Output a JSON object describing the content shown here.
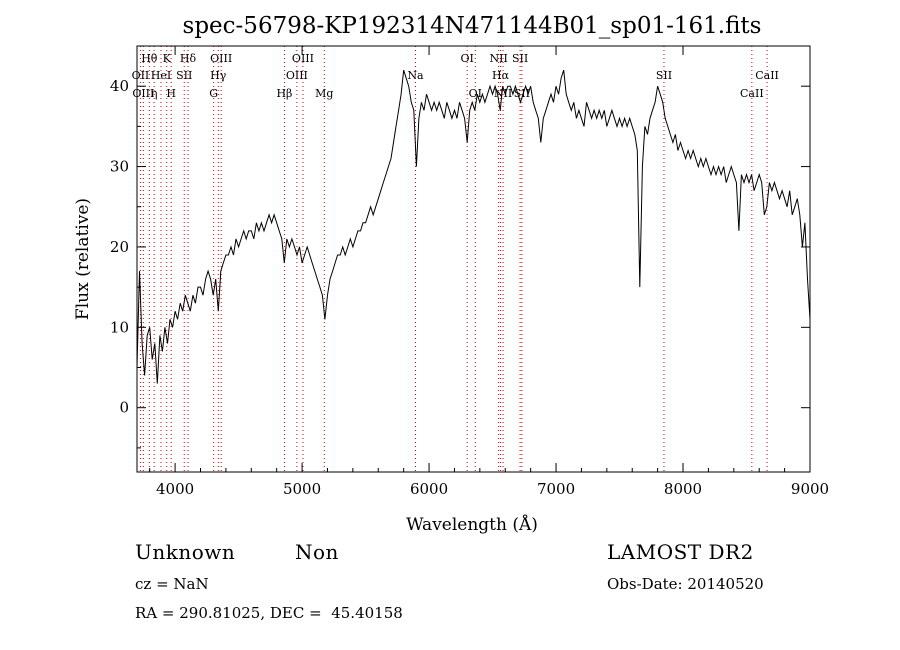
{
  "chart_data": {
    "type": "line",
    "title": "spec-56798-KP192314N471144B01_sp01-161.fits",
    "xlabel": "Wavelength (Å)",
    "ylabel": "Flux (relative)",
    "xlim": [
      3700,
      9000
    ],
    "ylim": [
      -8,
      45
    ],
    "xticks": [
      4000,
      5000,
      6000,
      7000,
      8000,
      9000
    ],
    "xtick_labels": [
      "4000",
      "5000",
      "6000",
      "7000",
      "8000",
      "9000"
    ],
    "yticks": [
      0,
      10,
      20,
      30,
      40
    ],
    "ytick_labels": [
      "0",
      "10",
      "20",
      "30",
      "40"
    ],
    "grid": false,
    "series": [
      {
        "points": [
          [
            3700,
            5
          ],
          [
            3720,
            17
          ],
          [
            3740,
            8
          ],
          [
            3760,
            4
          ],
          [
            3780,
            9
          ],
          [
            3800,
            10
          ],
          [
            3820,
            6
          ],
          [
            3840,
            8
          ],
          [
            3860,
            3
          ],
          [
            3880,
            9
          ],
          [
            3900,
            7
          ],
          [
            3920,
            10
          ],
          [
            3940,
            8
          ],
          [
            3960,
            11
          ],
          [
            3980,
            10
          ],
          [
            4000,
            12
          ],
          [
            4020,
            11
          ],
          [
            4040,
            13
          ],
          [
            4060,
            12
          ],
          [
            4080,
            14
          ],
          [
            4100,
            13
          ],
          [
            4120,
            12
          ],
          [
            4140,
            14
          ],
          [
            4160,
            13
          ],
          [
            4180,
            15
          ],
          [
            4200,
            15
          ],
          [
            4220,
            14
          ],
          [
            4240,
            16
          ],
          [
            4260,
            17
          ],
          [
            4280,
            16
          ],
          [
            4300,
            14
          ],
          [
            4320,
            16
          ],
          [
            4340,
            12
          ],
          [
            4360,
            17
          ],
          [
            4380,
            18
          ],
          [
            4400,
            19
          ],
          [
            4420,
            19
          ],
          [
            4440,
            20
          ],
          [
            4460,
            19
          ],
          [
            4480,
            21
          ],
          [
            4500,
            20
          ],
          [
            4520,
            21
          ],
          [
            4540,
            22
          ],
          [
            4560,
            21
          ],
          [
            4580,
            22
          ],
          [
            4600,
            22
          ],
          [
            4620,
            21
          ],
          [
            4640,
            23
          ],
          [
            4660,
            22
          ],
          [
            4680,
            23
          ],
          [
            4700,
            22
          ],
          [
            4720,
            23
          ],
          [
            4740,
            24
          ],
          [
            4760,
            23
          ],
          [
            4780,
            24
          ],
          [
            4800,
            23
          ],
          [
            4820,
            22
          ],
          [
            4840,
            21
          ],
          [
            4860,
            18
          ],
          [
            4880,
            21
          ],
          [
            4900,
            20
          ],
          [
            4920,
            21
          ],
          [
            4940,
            20
          ],
          [
            4960,
            19
          ],
          [
            4980,
            20
          ],
          [
            5000,
            18
          ],
          [
            5020,
            19
          ],
          [
            5040,
            20
          ],
          [
            5060,
            19
          ],
          [
            5080,
            18
          ],
          [
            5100,
            17
          ],
          [
            5120,
            16
          ],
          [
            5140,
            15
          ],
          [
            5160,
            14
          ],
          [
            5180,
            11
          ],
          [
            5200,
            14
          ],
          [
            5220,
            16
          ],
          [
            5240,
            17
          ],
          [
            5260,
            18
          ],
          [
            5280,
            19
          ],
          [
            5300,
            19
          ],
          [
            5320,
            20
          ],
          [
            5340,
            19
          ],
          [
            5360,
            20
          ],
          [
            5380,
            21
          ],
          [
            5400,
            20
          ],
          [
            5420,
            21
          ],
          [
            5440,
            22
          ],
          [
            5460,
            22
          ],
          [
            5480,
            23
          ],
          [
            5500,
            23
          ],
          [
            5520,
            24
          ],
          [
            5540,
            25
          ],
          [
            5560,
            24
          ],
          [
            5580,
            25
          ],
          [
            5600,
            26
          ],
          [
            5620,
            27
          ],
          [
            5640,
            28
          ],
          [
            5660,
            29
          ],
          [
            5680,
            30
          ],
          [
            5700,
            31
          ],
          [
            5720,
            33
          ],
          [
            5740,
            35
          ],
          [
            5760,
            37
          ],
          [
            5780,
            39
          ],
          [
            5800,
            42
          ],
          [
            5820,
            41
          ],
          [
            5840,
            40
          ],
          [
            5860,
            38
          ],
          [
            5880,
            37
          ],
          [
            5900,
            30
          ],
          [
            5920,
            36
          ],
          [
            5940,
            38
          ],
          [
            5960,
            37
          ],
          [
            5980,
            39
          ],
          [
            6000,
            38
          ],
          [
            6020,
            37
          ],
          [
            6040,
            38
          ],
          [
            6060,
            37
          ],
          [
            6080,
            38
          ],
          [
            6100,
            37
          ],
          [
            6120,
            36
          ],
          [
            6140,
            38
          ],
          [
            6160,
            37
          ],
          [
            6180,
            36
          ],
          [
            6200,
            37
          ],
          [
            6220,
            36
          ],
          [
            6240,
            38
          ],
          [
            6260,
            37
          ],
          [
            6280,
            36
          ],
          [
            6300,
            33
          ],
          [
            6320,
            37
          ],
          [
            6340,
            38
          ],
          [
            6360,
            37
          ],
          [
            6380,
            39
          ],
          [
            6400,
            38
          ],
          [
            6420,
            39
          ],
          [
            6440,
            38
          ],
          [
            6460,
            39
          ],
          [
            6480,
            40
          ],
          [
            6500,
            39
          ],
          [
            6520,
            40
          ],
          [
            6540,
            39
          ],
          [
            6560,
            37
          ],
          [
            6580,
            40
          ],
          [
            6600,
            39
          ],
          [
            6620,
            40
          ],
          [
            6640,
            40
          ],
          [
            6660,
            39
          ],
          [
            6680,
            40
          ],
          [
            6700,
            39
          ],
          [
            6720,
            38
          ],
          [
            6740,
            39
          ],
          [
            6760,
            40
          ],
          [
            6780,
            39
          ],
          [
            6800,
            40
          ],
          [
            6820,
            38
          ],
          [
            6840,
            37
          ],
          [
            6860,
            36
          ],
          [
            6880,
            33
          ],
          [
            6900,
            36
          ],
          [
            6920,
            37
          ],
          [
            6940,
            38
          ],
          [
            6960,
            39
          ],
          [
            6980,
            38
          ],
          [
            7000,
            40
          ],
          [
            7020,
            39
          ],
          [
            7040,
            41
          ],
          [
            7060,
            42
          ],
          [
            7080,
            39
          ],
          [
            7100,
            38
          ],
          [
            7120,
            37
          ],
          [
            7140,
            38
          ],
          [
            7160,
            36
          ],
          [
            7180,
            37
          ],
          [
            7200,
            36
          ],
          [
            7220,
            35
          ],
          [
            7240,
            38
          ],
          [
            7260,
            37
          ],
          [
            7280,
            36
          ],
          [
            7300,
            37
          ],
          [
            7320,
            36
          ],
          [
            7340,
            37
          ],
          [
            7360,
            36
          ],
          [
            7380,
            37
          ],
          [
            7400,
            35
          ],
          [
            7420,
            36
          ],
          [
            7440,
            37
          ],
          [
            7460,
            36
          ],
          [
            7480,
            35
          ],
          [
            7500,
            36
          ],
          [
            7520,
            35
          ],
          [
            7540,
            36
          ],
          [
            7560,
            35
          ],
          [
            7580,
            36
          ],
          [
            7600,
            35
          ],
          [
            7620,
            34
          ],
          [
            7640,
            32
          ],
          [
            7660,
            15
          ],
          [
            7680,
            30
          ],
          [
            7700,
            35
          ],
          [
            7720,
            34
          ],
          [
            7740,
            36
          ],
          [
            7760,
            37
          ],
          [
            7780,
            38
          ],
          [
            7800,
            40
          ],
          [
            7820,
            39
          ],
          [
            7840,
            38
          ],
          [
            7860,
            36
          ],
          [
            7880,
            35
          ],
          [
            7900,
            34
          ],
          [
            7920,
            33
          ],
          [
            7940,
            34
          ],
          [
            7960,
            32
          ],
          [
            7980,
            33
          ],
          [
            8000,
            32
          ],
          [
            8020,
            31
          ],
          [
            8040,
            32
          ],
          [
            8060,
            31
          ],
          [
            8080,
            32
          ],
          [
            8100,
            31
          ],
          [
            8120,
            30
          ],
          [
            8140,
            31
          ],
          [
            8160,
            30
          ],
          [
            8180,
            31
          ],
          [
            8200,
            30
          ],
          [
            8220,
            29
          ],
          [
            8240,
            30
          ],
          [
            8260,
            29
          ],
          [
            8280,
            30
          ],
          [
            8300,
            29
          ],
          [
            8320,
            30
          ],
          [
            8340,
            28
          ],
          [
            8360,
            29
          ],
          [
            8380,
            30
          ],
          [
            8400,
            29
          ],
          [
            8420,
            28
          ],
          [
            8440,
            22
          ],
          [
            8460,
            29
          ],
          [
            8480,
            28
          ],
          [
            8500,
            29
          ],
          [
            8520,
            28
          ],
          [
            8540,
            29
          ],
          [
            8560,
            27
          ],
          [
            8580,
            28
          ],
          [
            8600,
            29
          ],
          [
            8620,
            28
          ],
          [
            8640,
            24
          ],
          [
            8660,
            25
          ],
          [
            8680,
            28
          ],
          [
            8700,
            27
          ],
          [
            8720,
            28
          ],
          [
            8740,
            27
          ],
          [
            8760,
            26
          ],
          [
            8780,
            27
          ],
          [
            8800,
            26
          ],
          [
            8820,
            25
          ],
          [
            8840,
            27
          ],
          [
            8860,
            24
          ],
          [
            8880,
            25
          ],
          [
            8900,
            26
          ],
          [
            8920,
            24
          ],
          [
            8940,
            20
          ],
          [
            8960,
            23
          ],
          [
            8980,
            16
          ],
          [
            9000,
            11
          ]
        ]
      }
    ],
    "lines": [
      {
        "x": 3727,
        "label": "OII",
        "row": 1
      },
      {
        "x": 3750,
        "label": "OIII",
        "row": 2
      },
      {
        "x": 3797,
        "label": "Hθ",
        "row": 0
      },
      {
        "x": 3835,
        "label": "η",
        "row": 2
      },
      {
        "x": 3889,
        "label": "HeI",
        "row": 1
      },
      {
        "x": 3934,
        "label": "K",
        "row": 0
      },
      {
        "x": 3969,
        "label": "H",
        "row": 2
      },
      {
        "x": 4072,
        "label": "SII",
        "row": 1
      },
      {
        "x": 4102,
        "label": "Hδ",
        "row": 0
      },
      {
        "x": 4304,
        "label": "G",
        "row": 2
      },
      {
        "x": 4340,
        "label": "Hγ",
        "row": 1
      },
      {
        "x": 4363,
        "label": "OIII",
        "row": 0
      },
      {
        "x": 4861,
        "label": "Hβ",
        "row": 2
      },
      {
        "x": 4959,
        "label": "OIII",
        "row": 1
      },
      {
        "x": 5007,
        "label": "OIII",
        "row": 0
      },
      {
        "x": 5175,
        "label": "Mg",
        "row": 2
      },
      {
        "x": 5893,
        "label": "Na",
        "row": 1
      },
      {
        "x": 6300,
        "label": "OI",
        "row": 0
      },
      {
        "x": 6364,
        "label": "OI",
        "row": 2
      },
      {
        "x": 6548,
        "label": "NII",
        "row": 0
      },
      {
        "x": 6563,
        "label": "Hα",
        "row": 1
      },
      {
        "x": 6583,
        "label": "NII",
        "row": 2
      },
      {
        "x": 6717,
        "label": "SII",
        "row": 0
      },
      {
        "x": 6731,
        "label": "SII",
        "row": 2
      },
      {
        "x": 7850,
        "label": "SII",
        "row": 1
      },
      {
        "x": 8542,
        "label": "CaII",
        "row": 2
      },
      {
        "x": 8662,
        "label": "CaII",
        "row": 1
      }
    ]
  },
  "info": {
    "class_label": "Unknown",
    "subclass_label": "Non",
    "cz_text": "cz = NaN",
    "coords_text": "RA = 290.81025, DEC =  45.40158",
    "survey_label": "LAMOST DR2",
    "obs_date_text": "Obs-Date: 20140520"
  },
  "colors": {
    "spectrum": "#000000",
    "line_markers": "#cc0000",
    "axes": "#000000"
  }
}
